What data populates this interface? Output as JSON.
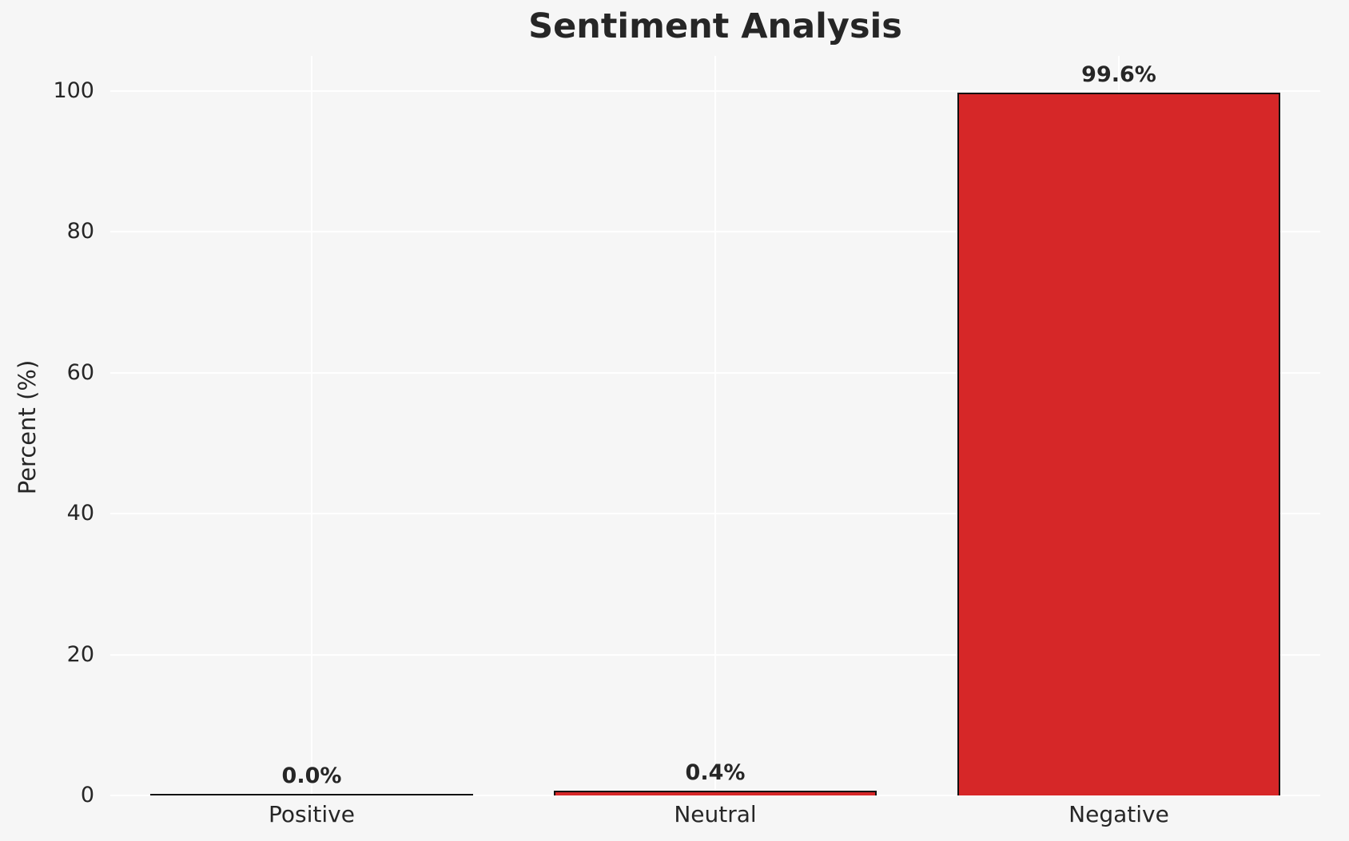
{
  "chart_data": {
    "type": "bar",
    "title": "Sentiment Analysis",
    "xlabel": "",
    "ylabel": "Percent (%)",
    "categories": [
      "Positive",
      "Neutral",
      "Negative"
    ],
    "values": [
      0.0,
      0.4,
      99.6
    ],
    "value_labels": [
      "0.0%",
      "0.4%",
      "99.6%"
    ],
    "yticks": [
      0,
      20,
      40,
      60,
      80,
      100
    ],
    "ylim": [
      0,
      105
    ],
    "grid": "on",
    "legend": "none",
    "colors": {
      "bar_fill": "#d62728",
      "bar_edge": "#111111",
      "background": "#f6f6f6",
      "gridline": "#ffffff",
      "text": "#262626"
    }
  }
}
